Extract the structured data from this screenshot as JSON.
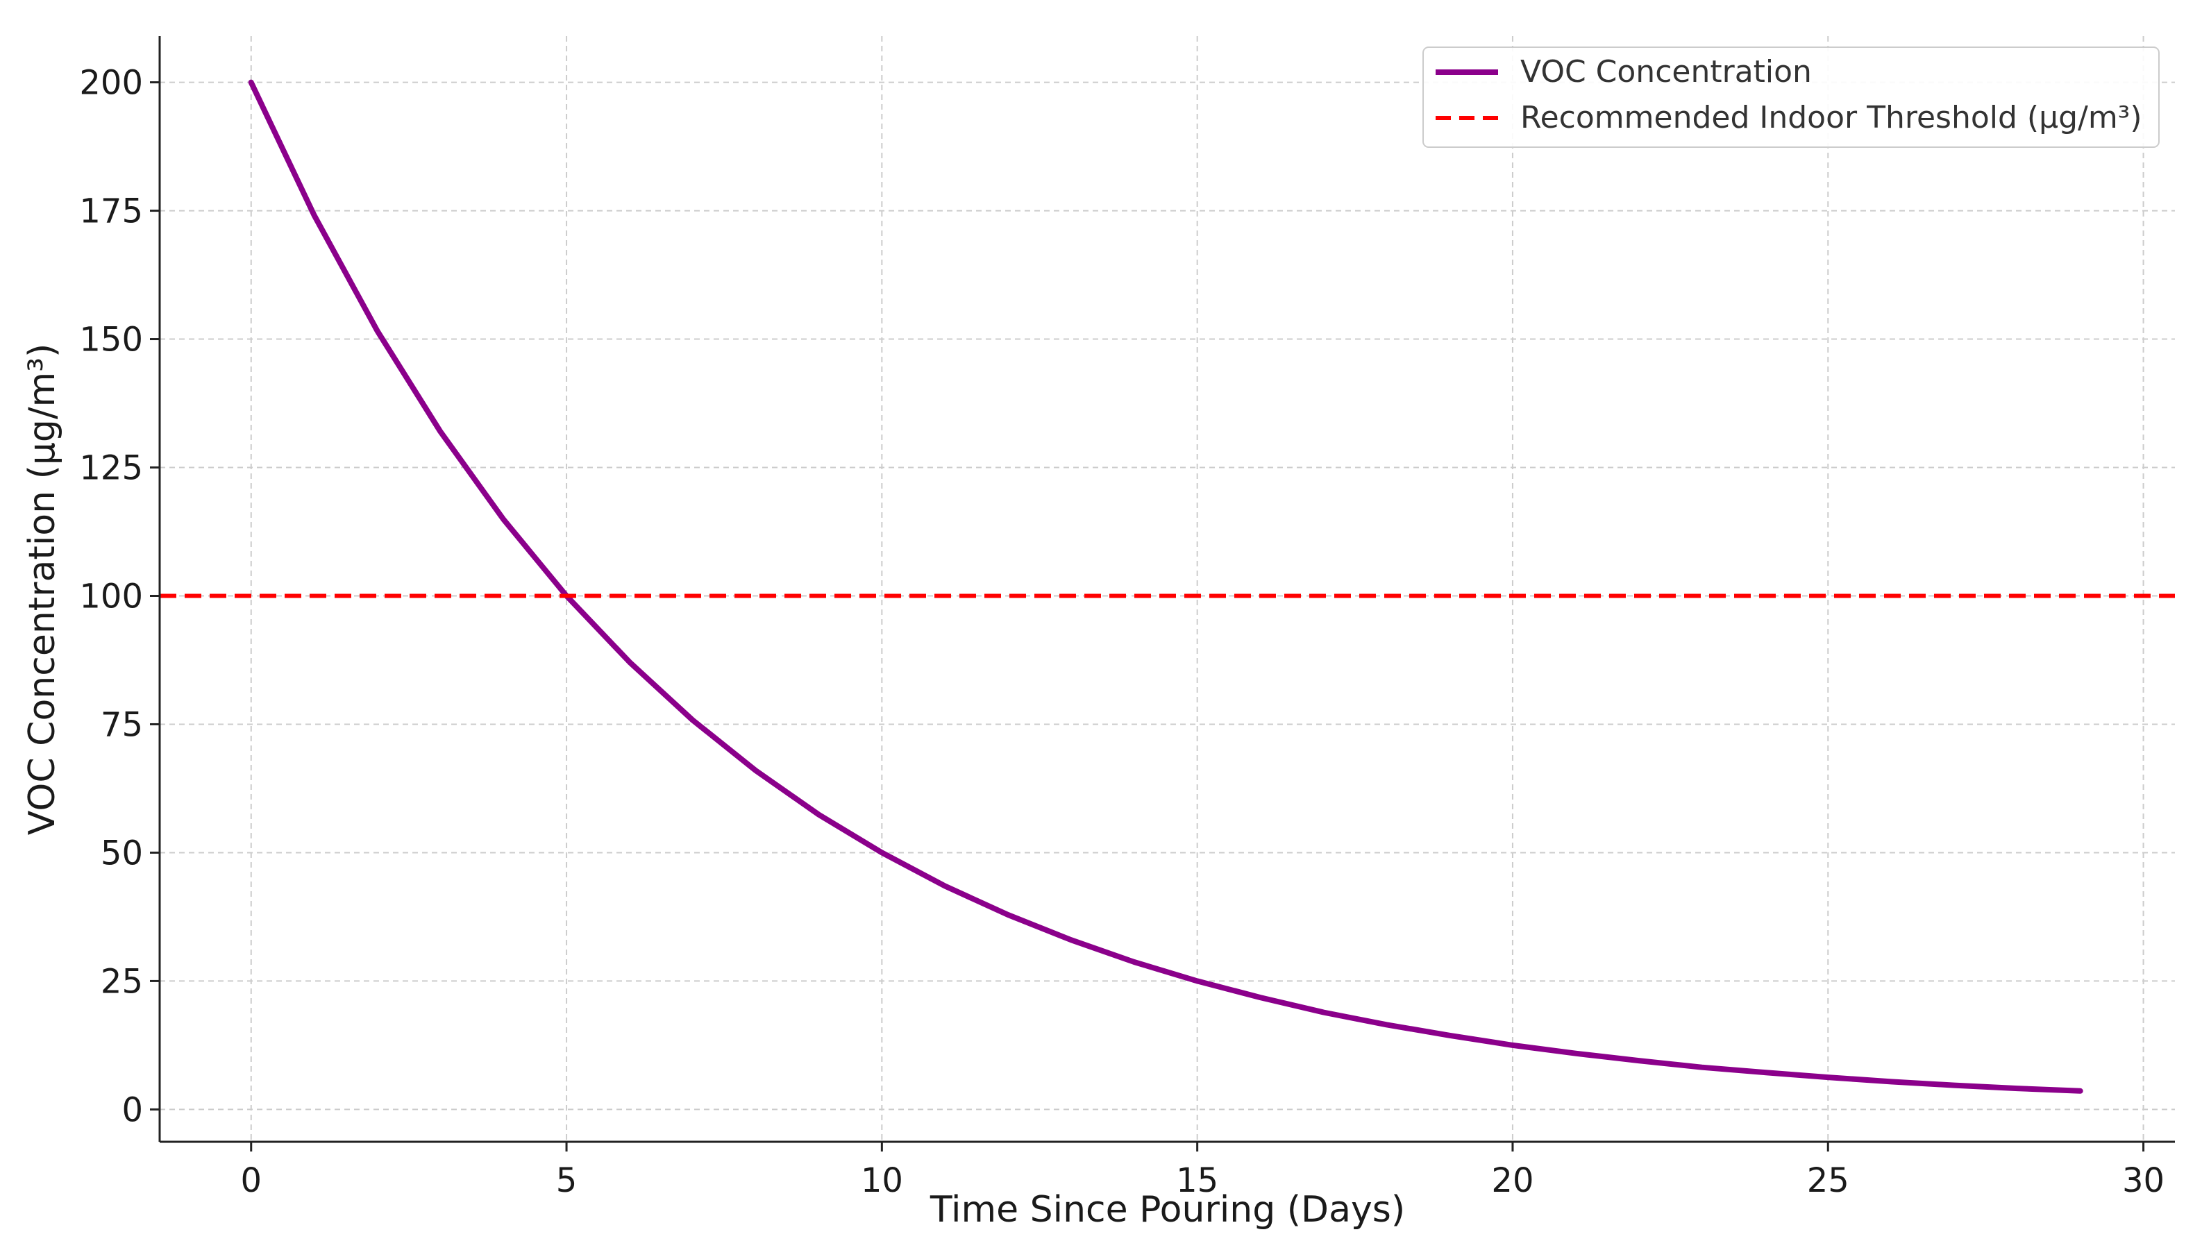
{
  "chart_data": {
    "type": "line",
    "xlabel": "Time Since Pouring (Days)",
    "ylabel": "VOC Concentration (µg/m³)",
    "xlim": [
      -1.45,
      30.5
    ],
    "ylim": [
      -6.3,
      209
    ],
    "x_ticks": [
      0,
      5,
      10,
      15,
      20,
      25,
      30
    ],
    "y_ticks": [
      0,
      25,
      50,
      75,
      100,
      125,
      150,
      175,
      200
    ],
    "grid": true,
    "legend_position": "top-right",
    "series": [
      {
        "name": "VOC Concentration",
        "color": "#8b008b",
        "style": "solid",
        "x": [
          0,
          1,
          2,
          3,
          4,
          5,
          6,
          7,
          8,
          9,
          10,
          11,
          12,
          13,
          14,
          15,
          16,
          17,
          18,
          19,
          20,
          21,
          22,
          23,
          24,
          25,
          26,
          27,
          28,
          29
        ],
        "y": [
          200,
          174.1,
          151.6,
          132.0,
          114.9,
          100.0,
          87.1,
          75.8,
          66.0,
          57.4,
          50.0,
          43.5,
          37.9,
          33.0,
          28.7,
          25.0,
          21.8,
          18.9,
          16.5,
          14.4,
          12.5,
          10.9,
          9.5,
          8.2,
          7.2,
          6.25,
          5.4,
          4.7,
          4.1,
          3.6
        ]
      },
      {
        "name": "Recommended Indoor Threshold (µg/m³)",
        "color": "#ff0000",
        "style": "dashed",
        "y_constant": 100
      }
    ]
  }
}
